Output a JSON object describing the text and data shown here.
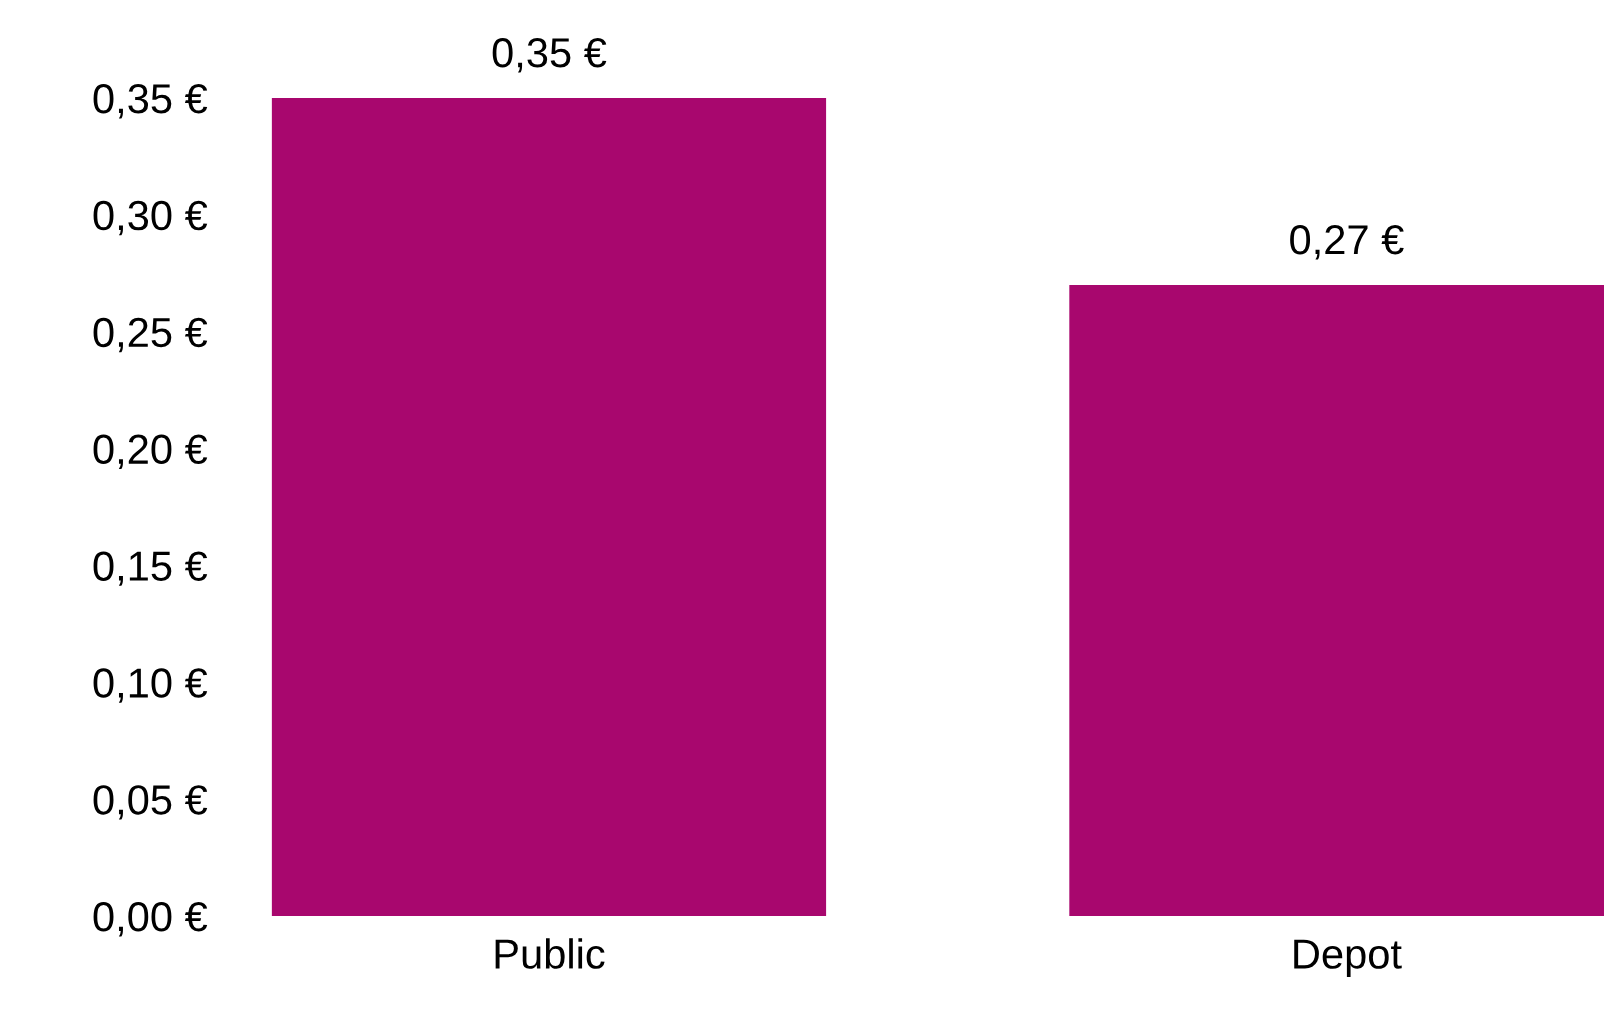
{
  "chart_data": {
    "type": "bar",
    "categories": [
      "Public",
      "Depot"
    ],
    "values": [
      0.35,
      0.27
    ],
    "value_labels": [
      "0,35 €",
      "0,27 €"
    ],
    "color": "#a8076e",
    "ylim": [
      0,
      0.35
    ],
    "yticks": [
      {
        "value": 0,
        "label": "0,00 €"
      },
      {
        "value": 0.05,
        "label": "0,05 €"
      },
      {
        "value": 0.1,
        "label": "0,10 €"
      },
      {
        "value": 0.15,
        "label": "0,15 €"
      },
      {
        "value": 0.2,
        "label": "0,20 €"
      },
      {
        "value": 0.25,
        "label": "0,25 €"
      },
      {
        "value": 0.3,
        "label": "0,30 €"
      },
      {
        "value": 0.35,
        "label": "0,35 €"
      }
    ],
    "grid": false,
    "legend": false
  }
}
